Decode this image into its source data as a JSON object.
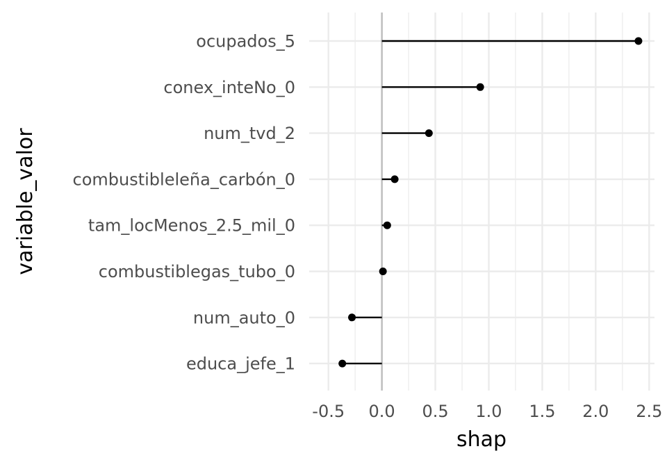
{
  "chart_data": {
    "type": "lollipop",
    "xlabel": "shap",
    "ylabel": "variable_valor",
    "xlim": [
      -0.68,
      2.55
    ],
    "x_ticks": [
      -0.5,
      0.0,
      0.5,
      1.0,
      1.5,
      2.0,
      2.5
    ],
    "x_tick_labels": [
      "-0.5",
      "0.0",
      "0.5",
      "1.0",
      "1.5",
      "2.0",
      "2.5"
    ],
    "grid": true,
    "reference_line": 0,
    "categories": [
      "ocupados_5",
      "conex_inteNo_0",
      "num_tvd_2",
      "combustibleleña_carbón_0",
      "tam_locMenos_2.5_mil_0",
      "combustiblegas_tubo_0",
      "num_auto_0",
      "educa_jefe_1"
    ],
    "values": [
      2.4,
      0.92,
      0.44,
      0.12,
      0.05,
      0.01,
      -0.28,
      -0.37
    ],
    "colors": {
      "point": "#000000",
      "segment": "#000000",
      "grid": "#ebebeb",
      "zero_line": "#bdbdbd"
    }
  }
}
